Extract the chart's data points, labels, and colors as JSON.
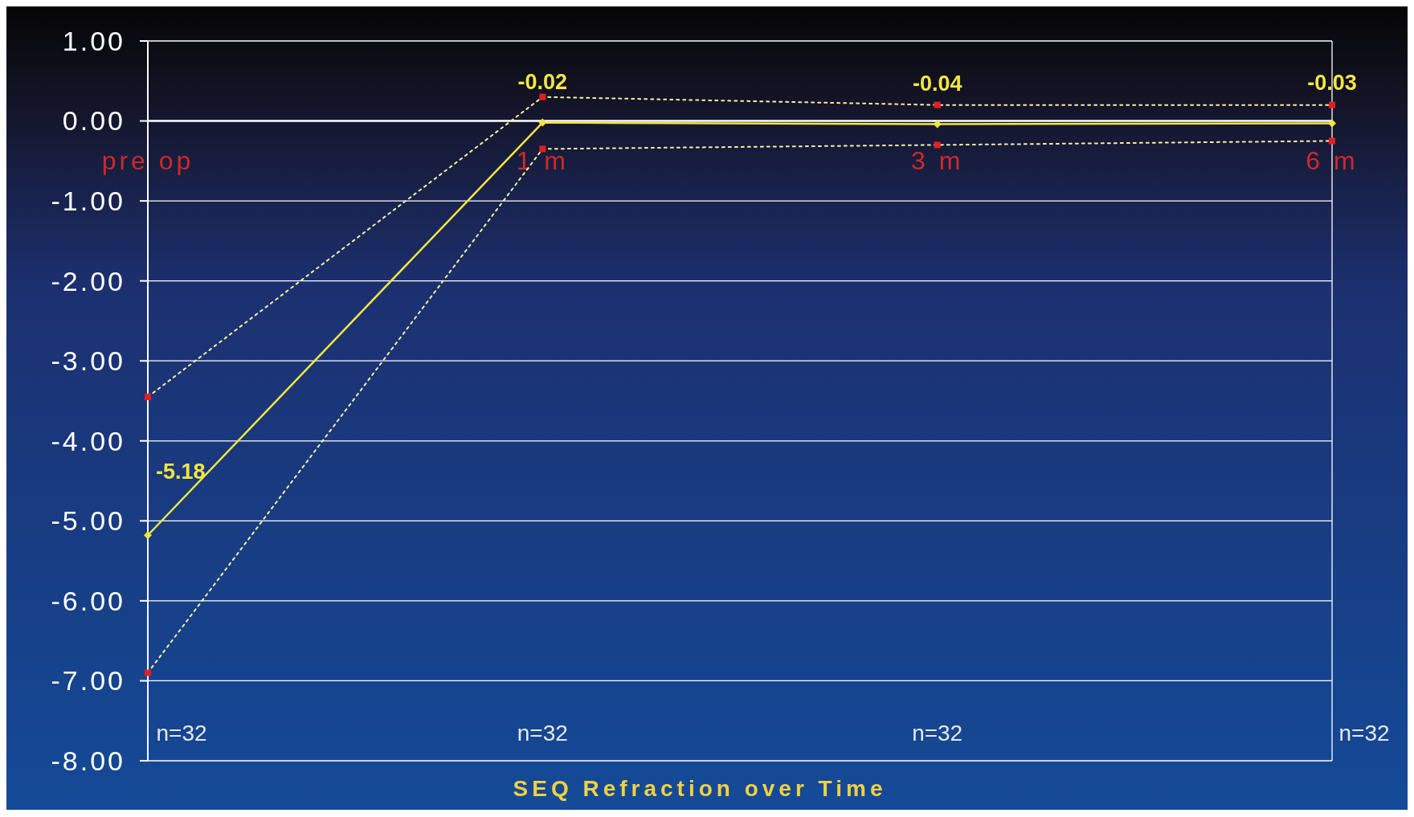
{
  "chart_data": {
    "type": "line",
    "xlabel": "SEQ Refraction over Time",
    "categories": [
      "pre op",
      "1 m",
      "3 m",
      "6 m"
    ],
    "series": [
      {
        "color": "#f2e640",
        "values": [
          -5.18,
          -0.02,
          -0.04,
          -0.03
        ],
        "value_labels": [
          "-5.18",
          "-0.02",
          "-0.04",
          "-0.03"
        ],
        "marker": "diamond",
        "line_style": "solid"
      },
      {
        "color": "#f5f0a0",
        "values": [
          -3.45,
          0.3,
          0.2,
          0.2
        ],
        "marker": "square",
        "line_style": "dotted"
      },
      {
        "color": "#f5f0a0",
        "values": [
          -6.9,
          -0.35,
          -0.3,
          -0.25
        ],
        "marker": "square",
        "line_style": "dotted"
      }
    ],
    "ylim": [
      -8,
      1
    ],
    "yticks": [
      {
        "value": 1,
        "label": "1.00"
      },
      {
        "value": 0,
        "label": "0.00"
      },
      {
        "value": -1,
        "label": "-1.00"
      },
      {
        "value": -2,
        "label": "-2.00"
      },
      {
        "value": -3,
        "label": "-3.00"
      },
      {
        "value": -4,
        "label": "-4.00"
      },
      {
        "value": -5,
        "label": "-5.00"
      },
      {
        "value": -6,
        "label": "-6.00"
      },
      {
        "value": -7,
        "label": "-7.00"
      },
      {
        "value": -8,
        "label": "-8.00"
      }
    ],
    "grid": "y",
    "annotations": [
      "n=32",
      "n=32",
      "n=32",
      "n=32"
    ]
  }
}
